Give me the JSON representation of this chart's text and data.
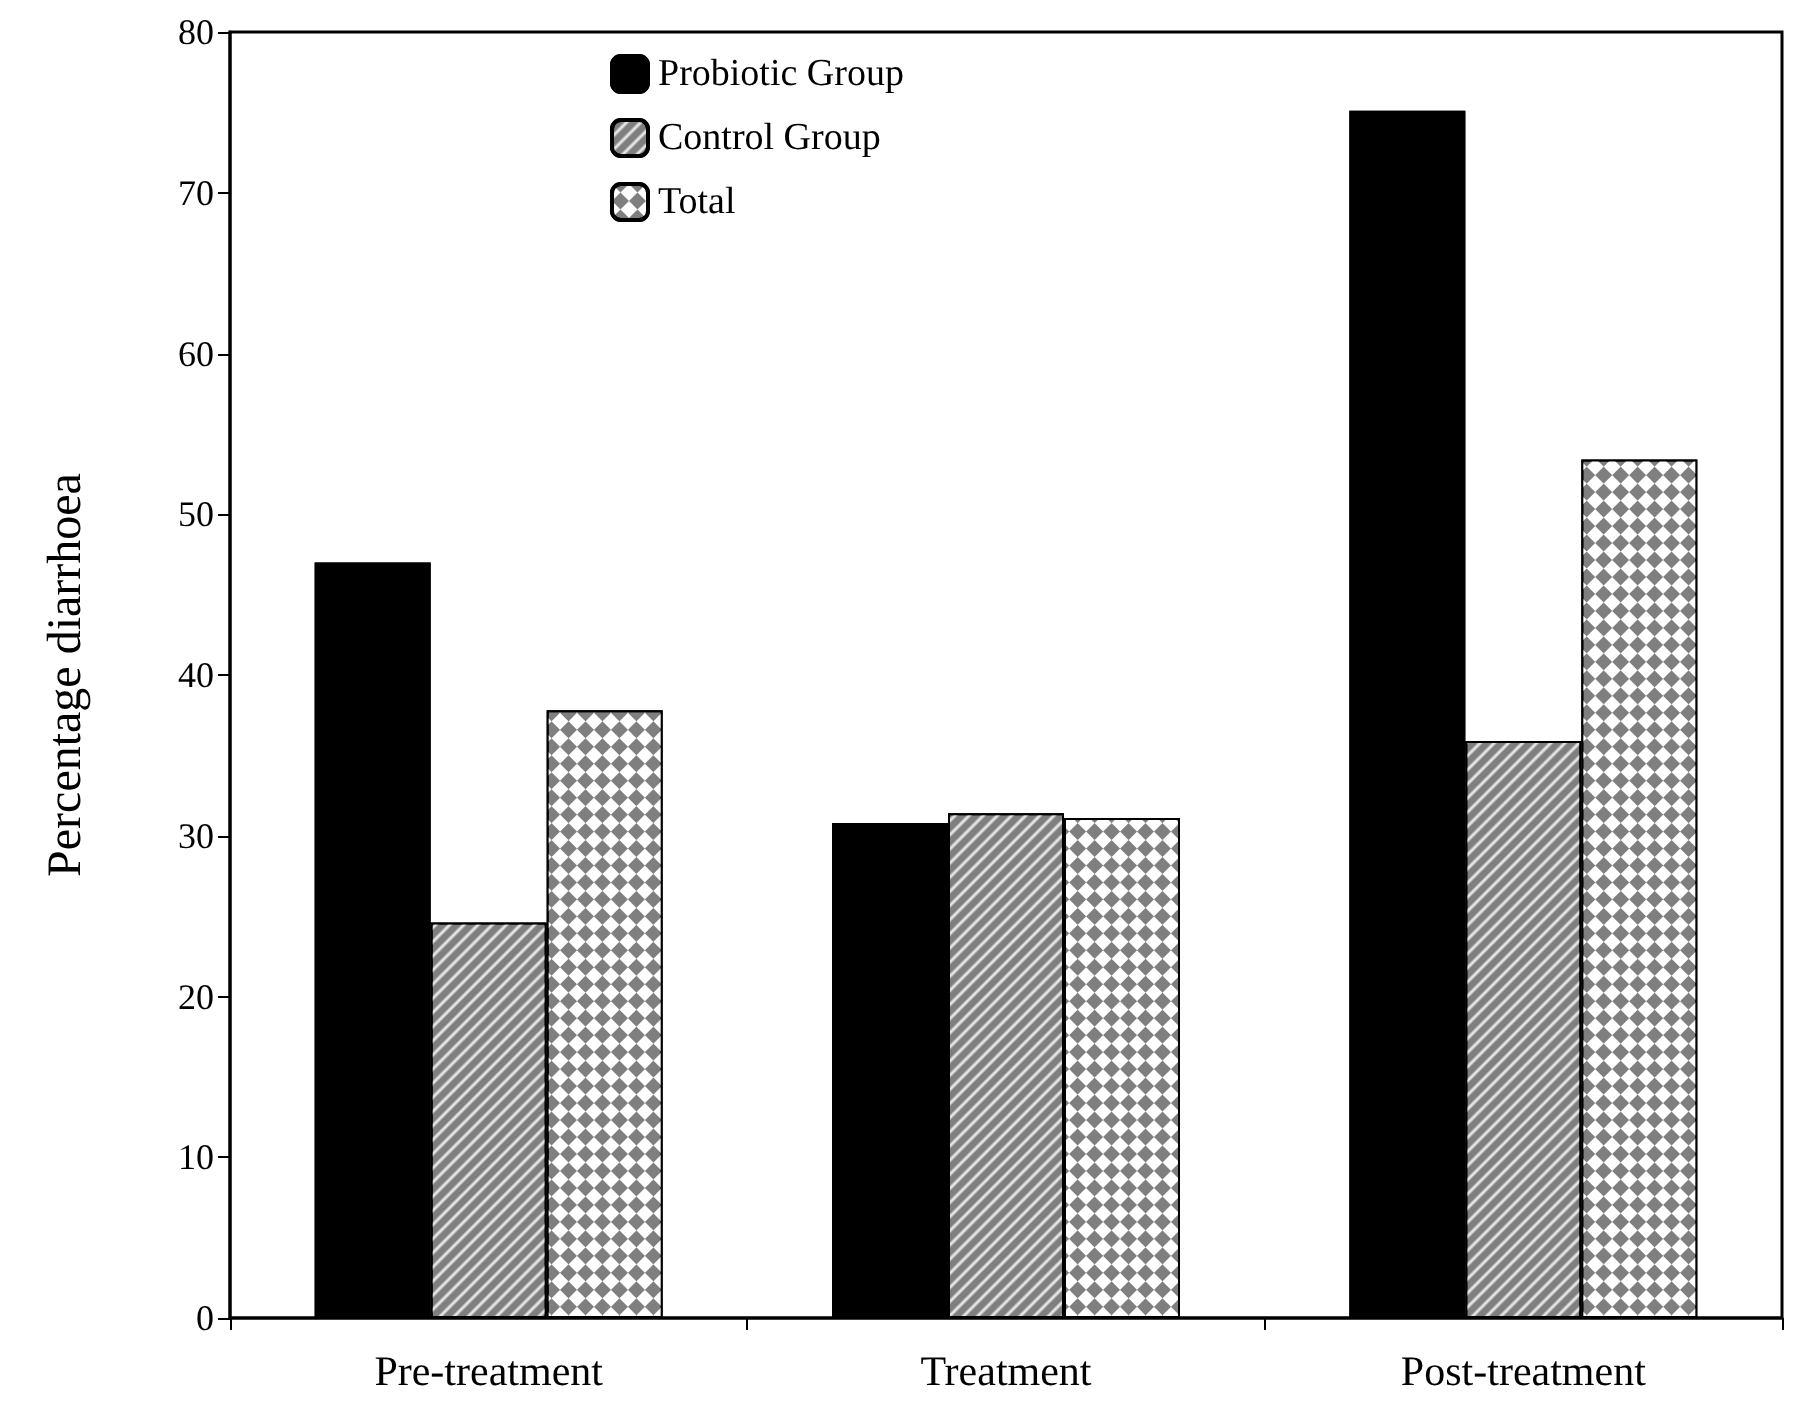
{
  "chart_data": {
    "type": "bar",
    "ylabel": "Percentage diarrhoea",
    "categories": [
      "Pre-treatment",
      "Treatment",
      "Post-treatment"
    ],
    "series": [
      {
        "name": "Probiotic Group",
        "color": "#000000",
        "values": [
          47,
          30.8,
          75.1
        ]
      },
      {
        "name": "Control Group",
        "color": "#7f7f7f",
        "values": [
          24.6,
          31.4,
          35.9
        ]
      },
      {
        "name": "Total",
        "color": "#7f7f7f",
        "values": [
          37.8,
          31.1,
          53.4
        ]
      }
    ],
    "ylim": [
      0,
      80
    ],
    "yticks": [
      0,
      10,
      20,
      30,
      40,
      50,
      60,
      70,
      80
    ],
    "grid": false,
    "legend": "top"
  }
}
